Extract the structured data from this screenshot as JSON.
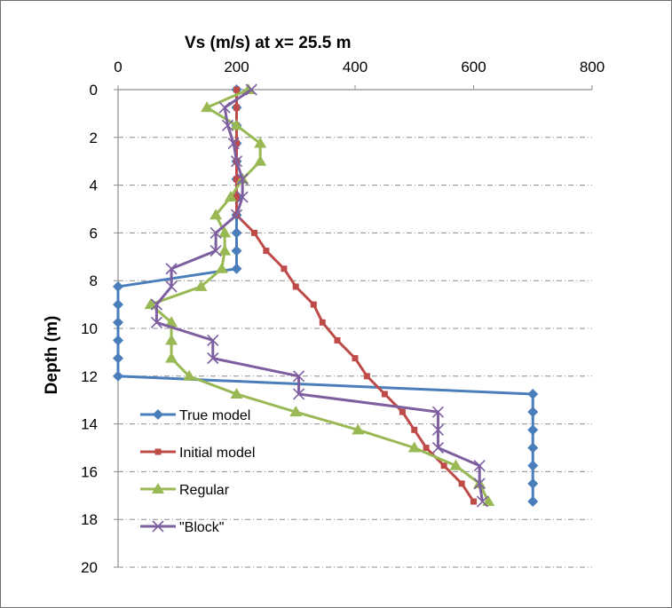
{
  "chart_data": {
    "type": "line",
    "title": "Vs (m/s) at  x= 25.5 m",
    "xlabel": "Vs (m/s)",
    "ylabel": "Depth (m)",
    "x_axis_position": "top",
    "y_axis_inverted": true,
    "xlim": [
      0,
      800
    ],
    "ylim": [
      0,
      20
    ],
    "x_ticks": [
      0,
      200,
      400,
      600,
      800
    ],
    "y_ticks": [
      0,
      2,
      4,
      6,
      8,
      10,
      12,
      14,
      16,
      18,
      20
    ],
    "gridlines": "horizontal dash-dot",
    "legend_position": "lower-left",
    "series": [
      {
        "name": "True model",
        "color": "#4a7ebb",
        "marker": "diamond",
        "points": [
          [
            200,
            0
          ],
          [
            200,
            0.75
          ],
          [
            200,
            1.5
          ],
          [
            200,
            2.25
          ],
          [
            200,
            3
          ],
          [
            200,
            3.75
          ],
          [
            200,
            4.5
          ],
          [
            200,
            5.25
          ],
          [
            200,
            6
          ],
          [
            200,
            6.75
          ],
          [
            200,
            7.5
          ],
          [
            0,
            8.25
          ],
          [
            0,
            9
          ],
          [
            0,
            9.75
          ],
          [
            0,
            10.5
          ],
          [
            0,
            11.25
          ],
          [
            0,
            12
          ],
          [
            700,
            12.75
          ],
          [
            700,
            13.5
          ],
          [
            700,
            14.25
          ],
          [
            700,
            15
          ],
          [
            700,
            15.75
          ],
          [
            700,
            16.5
          ],
          [
            700,
            17.25
          ]
        ]
      },
      {
        "name": "Initial model",
        "color": "#be4b48",
        "marker": "square",
        "points": [
          [
            200,
            0
          ],
          [
            200,
            0.75
          ],
          [
            200,
            1.5
          ],
          [
            200,
            2.25
          ],
          [
            200,
            3
          ],
          [
            200,
            3.75
          ],
          [
            200,
            4.5
          ],
          [
            200,
            5.25
          ],
          [
            230,
            6
          ],
          [
            250,
            6.75
          ],
          [
            280,
            7.5
          ],
          [
            300,
            8.25
          ],
          [
            330,
            9
          ],
          [
            345,
            9.75
          ],
          [
            370,
            10.5
          ],
          [
            400,
            11.25
          ],
          [
            420,
            12
          ],
          [
            450,
            12.75
          ],
          [
            480,
            13.5
          ],
          [
            500,
            14.25
          ],
          [
            520,
            15
          ],
          [
            550,
            15.75
          ],
          [
            580,
            16.5
          ],
          [
            600,
            17.25
          ]
        ]
      },
      {
        "name": "Regular",
        "color": "#98b954",
        "marker": "triangle",
        "points": [
          [
            220,
            0
          ],
          [
            150,
            0.75
          ],
          [
            200,
            1.5
          ],
          [
            240,
            2.25
          ],
          [
            240,
            3
          ],
          [
            210,
            3.75
          ],
          [
            190,
            4.5
          ],
          [
            165,
            5.25
          ],
          [
            180,
            6
          ],
          [
            180,
            6.75
          ],
          [
            175,
            7.5
          ],
          [
            140,
            8.25
          ],
          [
            55,
            9
          ],
          [
            90,
            9.75
          ],
          [
            90,
            10.5
          ],
          [
            90,
            11.25
          ],
          [
            120,
            12
          ],
          [
            200,
            12.75
          ],
          [
            300,
            13.5
          ],
          [
            405,
            14.25
          ],
          [
            500,
            15
          ],
          [
            570,
            15.75
          ],
          [
            610,
            16.5
          ],
          [
            625,
            17.25
          ]
        ]
      },
      {
        "name": "\"Block\"",
        "color": "#7d5fa0",
        "marker": "x",
        "points": [
          [
            225,
            0
          ],
          [
            180,
            0.75
          ],
          [
            185,
            1.5
          ],
          [
            195,
            2.25
          ],
          [
            200,
            3
          ],
          [
            210,
            3.75
          ],
          [
            210,
            4.5
          ],
          [
            200,
            5.25
          ],
          [
            165,
            6
          ],
          [
            165,
            6.75
          ],
          [
            90,
            7.5
          ],
          [
            90,
            8.25
          ],
          [
            65,
            9
          ],
          [
            65,
            9.75
          ],
          [
            160,
            10.5
          ],
          [
            160,
            11.25
          ],
          [
            305,
            12
          ],
          [
            305,
            12.75
          ],
          [
            540,
            13.5
          ],
          [
            540,
            14.25
          ],
          [
            540,
            15
          ],
          [
            610,
            15.75
          ],
          [
            610,
            16.5
          ],
          [
            615,
            17.25
          ]
        ]
      }
    ]
  }
}
